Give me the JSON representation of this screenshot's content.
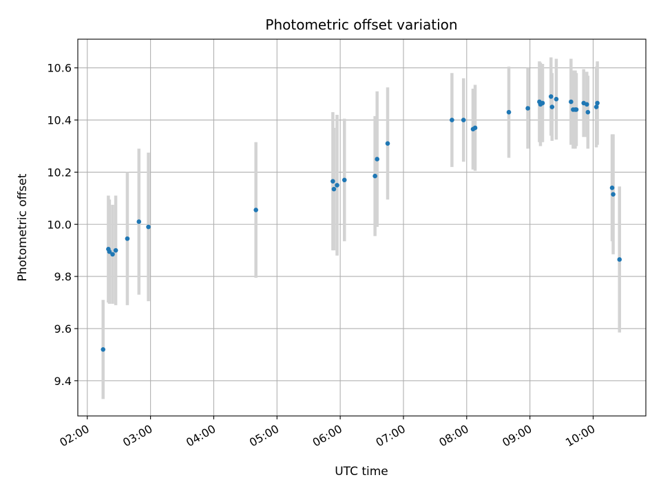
{
  "chart_data": {
    "type": "scatter",
    "title": "Photometric offset variation",
    "xlabel": "UTC time",
    "ylabel": "Photometric offset",
    "grid": true,
    "xlim": [
      "01:51",
      "10:50"
    ],
    "ylim": [
      9.265,
      10.71
    ],
    "xticks": [
      "02:00",
      "03:00",
      "04:00",
      "05:00",
      "06:00",
      "07:00",
      "08:00",
      "09:00",
      "10:00"
    ],
    "yticks": [
      9.4,
      9.6,
      9.8,
      10.0,
      10.2,
      10.4,
      10.6
    ],
    "ytick_labels": [
      "9.4",
      "9.6",
      "9.8",
      "10.0",
      "10.2",
      "10.4",
      "10.6"
    ],
    "colors": {
      "points": "#1f77b4",
      "errorbars": "#d3d3d3",
      "grid": "#b0b0b0"
    },
    "series": [
      {
        "points": [
          {
            "x": "02:15",
            "y": 9.52,
            "err": 0.19
          },
          {
            "x": "02:20",
            "y": 9.905,
            "err": 0.205
          },
          {
            "x": "02:21",
            "y": 9.895,
            "err": 0.2
          },
          {
            "x": "02:24",
            "y": 9.885,
            "err": 0.19
          },
          {
            "x": "02:27",
            "y": 9.9,
            "err": 0.21
          },
          {
            "x": "02:38",
            "y": 9.945,
            "err": 0.255
          },
          {
            "x": "02:49",
            "y": 10.01,
            "err": 0.28
          },
          {
            "x": "02:58",
            "y": 9.99,
            "err": 0.285
          },
          {
            "x": "04:40",
            "y": 10.055,
            "err": 0.26
          },
          {
            "x": "05:53",
            "y": 10.165,
            "err": 0.265
          },
          {
            "x": "05:54",
            "y": 10.135,
            "err": 0.235
          },
          {
            "x": "05:57",
            "y": 10.15,
            "err": 0.27
          },
          {
            "x": "06:04",
            "y": 10.17,
            "err": 0.235
          },
          {
            "x": "06:33",
            "y": 10.185,
            "err": 0.23
          },
          {
            "x": "06:35",
            "y": 10.25,
            "err": 0.26
          },
          {
            "x": "06:45",
            "y": 10.31,
            "err": 0.215
          },
          {
            "x": "07:46",
            "y": 10.4,
            "err": 0.18
          },
          {
            "x": "07:57",
            "y": 10.4,
            "err": 0.16
          },
          {
            "x": "08:06",
            "y": 10.365,
            "err": 0.155
          },
          {
            "x": "08:08",
            "y": 10.37,
            "err": 0.165
          },
          {
            "x": "08:40",
            "y": 10.43,
            "err": 0.175
          },
          {
            "x": "08:58",
            "y": 10.445,
            "err": 0.155
          },
          {
            "x": "09:09",
            "y": 10.47,
            "err": 0.155
          },
          {
            "x": "09:10",
            "y": 10.46,
            "err": 0.16
          },
          {
            "x": "09:12",
            "y": 10.465,
            "err": 0.15
          },
          {
            "x": "09:20",
            "y": 10.49,
            "err": 0.15
          },
          {
            "x": "09:21",
            "y": 10.45,
            "err": 0.13
          },
          {
            "x": "09:25",
            "y": 10.48,
            "err": 0.155
          },
          {
            "x": "09:39",
            "y": 10.47,
            "err": 0.165
          },
          {
            "x": "09:41",
            "y": 10.44,
            "err": 0.15
          },
          {
            "x": "09:43",
            "y": 10.44,
            "err": 0.15
          },
          {
            "x": "09:44",
            "y": 10.44,
            "err": 0.14
          },
          {
            "x": "09:51",
            "y": 10.465,
            "err": 0.13
          },
          {
            "x": "09:54",
            "y": 10.46,
            "err": 0.125
          },
          {
            "x": "09:55",
            "y": 10.43,
            "err": 0.14
          },
          {
            "x": "10:03",
            "y": 10.45,
            "err": 0.155
          },
          {
            "x": "10:04",
            "y": 10.465,
            "err": 0.16
          },
          {
            "x": "10:18",
            "y": 10.14,
            "err": 0.205
          },
          {
            "x": "10:19",
            "y": 10.115,
            "err": 0.23
          },
          {
            "x": "10:25",
            "y": 9.865,
            "err": 0.28
          }
        ]
      }
    ]
  }
}
